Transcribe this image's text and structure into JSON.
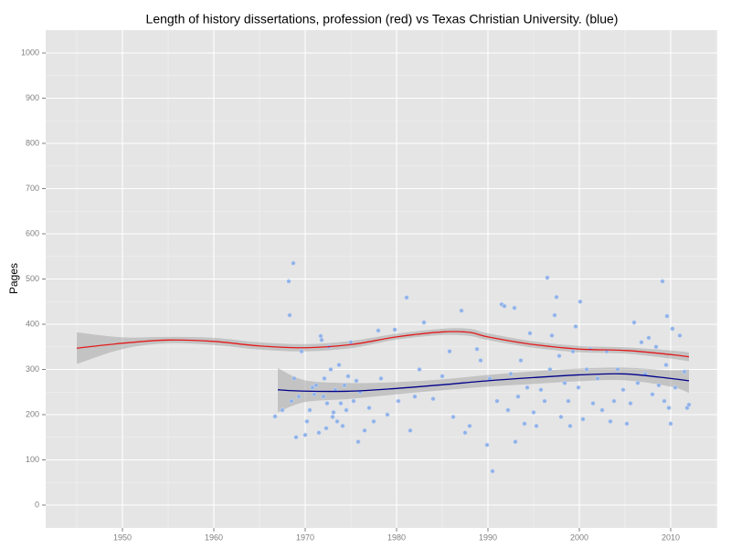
{
  "chart_data": {
    "type": "scatter",
    "title": "Length of history dissertations, profession (red) vs Texas Christian University. (blue)",
    "y_label": "Pages",
    "xlim": [
      1941.6,
      2015.1
    ],
    "ylim": [
      -50.5,
      1050.5
    ],
    "xticks": [
      1950,
      1960,
      1970,
      1980,
      1990,
      2000,
      2010
    ],
    "yticks": [
      0,
      100,
      200,
      300,
      400,
      500,
      600,
      700,
      800,
      900,
      1000
    ],
    "grid": true,
    "points": {
      "color": "#8fb1e8",
      "x": [
        1966.7,
        1967.5,
        1968.2,
        1968.3,
        1968.5,
        1968.7,
        1968.8,
        1969.0,
        1969.3,
        1969.6,
        1970.0,
        1970.2,
        1970.5,
        1970.8,
        1971.0,
        1971.2,
        1971.5,
        1971.7,
        1971.8,
        1972.0,
        1972.1,
        1972.3,
        1972.4,
        1972.6,
        1972.8,
        1973.0,
        1973.1,
        1973.3,
        1973.5,
        1973.7,
        1973.9,
        1974.1,
        1974.3,
        1974.5,
        1974.7,
        1975.0,
        1975.3,
        1975.6,
        1975.8,
        1976.0,
        1976.5,
        1977.0,
        1977.5,
        1978.0,
        1978.3,
        1979.0,
        1979.8,
        1980.2,
        1981.1,
        1981.5,
        1982.0,
        1982.5,
        1983.0,
        1984.0,
        1985.0,
        1985.8,
        1986.2,
        1987.1,
        1987.5,
        1988.0,
        1988.8,
        1989.2,
        1989.9,
        1990.2,
        1990.5,
        1991.0,
        1991.5,
        1991.8,
        1992.2,
        1992.5,
        1992.9,
        1993.0,
        1993.3,
        1993.6,
        1994.0,
        1994.3,
        1994.6,
        1995.0,
        1995.3,
        1995.8,
        1996.2,
        1996.5,
        1996.8,
        1997.0,
        1997.3,
        1997.5,
        1997.8,
        1998.0,
        1998.4,
        1998.8,
        1999.0,
        1999.3,
        1999.6,
        1999.9,
        2000.1,
        2000.4,
        2000.8,
        2001.2,
        2001.5,
        2002.0,
        2002.5,
        2003.0,
        2003.4,
        2003.8,
        2004.2,
        2004.8,
        2005.2,
        2005.6,
        2006.0,
        2006.4,
        2006.8,
        2007.2,
        2007.6,
        2008.0,
        2008.4,
        2008.7,
        2009.1,
        2009.3,
        2009.5,
        2009.6,
        2009.8,
        2010.0,
        2010.2,
        2010.5,
        2011.0,
        2011.5,
        2011.8,
        2012.0
      ],
      "y": [
        196,
        210,
        495,
        420,
        230,
        535,
        280,
        150,
        240,
        340,
        155,
        185,
        210,
        260,
        245,
        265,
        160,
        374,
        365,
        240,
        280,
        170,
        225,
        350,
        300,
        195,
        205,
        255,
        185,
        310,
        225,
        175,
        265,
        210,
        285,
        360,
        230,
        275,
        140,
        250,
        165,
        215,
        185,
        386,
        280,
        200,
        388,
        230,
        459,
        165,
        240,
        300,
        404,
        235,
        285,
        340,
        195,
        430,
        160,
        175,
        345,
        320,
        133,
        280,
        75,
        230,
        444,
        440,
        210,
        290,
        436,
        140,
        240,
        320,
        180,
        260,
        380,
        205,
        175,
        255,
        230,
        503,
        300,
        375,
        420,
        460,
        330,
        195,
        270,
        230,
        175,
        340,
        395,
        260,
        450,
        190,
        300,
        345,
        225,
        280,
        210,
        340,
        185,
        230,
        300,
        255,
        180,
        225,
        404,
        270,
        360,
        290,
        370,
        245,
        350,
        265,
        495,
        230,
        310,
        418,
        215,
        180,
        390,
        260,
        375,
        295,
        215,
        222
      ]
    },
    "lines": [
      {
        "color": "#e31a1c",
        "x": [
          1945,
          1950,
          1955,
          1960,
          1965,
          1970,
          1975,
          1980,
          1985,
          1988,
          1990,
          1995,
          2000,
          2005,
          2010,
          2012
        ],
        "values": [
          347,
          358,
          365,
          362,
          352,
          348,
          355,
          372,
          383,
          382,
          372,
          355,
          345,
          342,
          333,
          328
        ],
        "lower": [
          312,
          345,
          358,
          354,
          344,
          340,
          347,
          366,
          376,
          374,
          365,
          348,
          338,
          335,
          324,
          318
        ],
        "upper": [
          382,
          371,
          372,
          370,
          360,
          356,
          363,
          379,
          390,
          390,
          380,
          362,
          352,
          349,
          342,
          338
        ]
      },
      {
        "color": "#00008b",
        "x": [
          1967,
          1970,
          1975,
          1980,
          1985,
          1990,
          1995,
          2000,
          2005,
          2010,
          2012
        ],
        "values": [
          255,
          252,
          252,
          258,
          266,
          275,
          282,
          288,
          290,
          280,
          275
        ],
        "lower": [
          205,
          228,
          235,
          245,
          254,
          262,
          268,
          274,
          276,
          262,
          248
        ],
        "upper": [
          303,
          276,
          270,
          272,
          278,
          288,
          296,
          302,
          304,
          298,
          300
        ]
      }
    ]
  }
}
